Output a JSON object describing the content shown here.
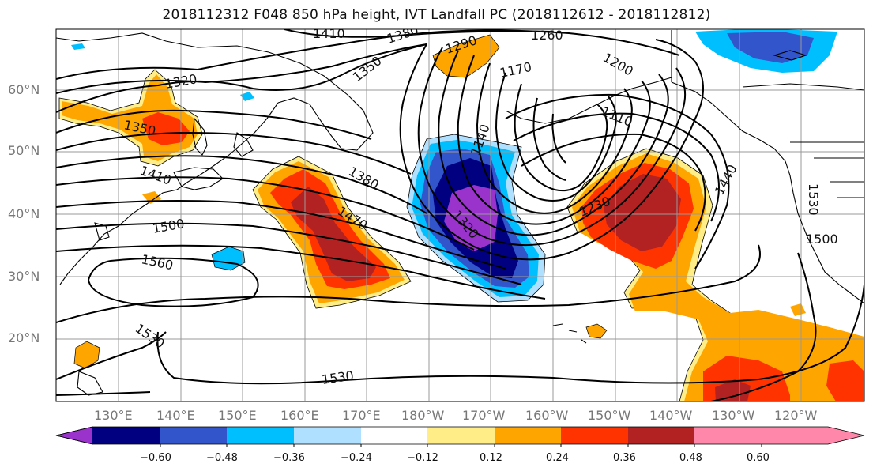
{
  "title": "2018112312 F048 850 hPa height, IVT Landfall PC (2018112612 - 2018112812)",
  "axes": {
    "lat_labels": [
      "60°N",
      "50°N",
      "40°N",
      "30°N",
      "20°N"
    ],
    "lon_labels": [
      "130°E",
      "140°E",
      "150°E",
      "160°E",
      "170°E",
      "180°W",
      "170°W",
      "160°W",
      "150°W",
      "140°W",
      "130°W",
      "120°W"
    ]
  },
  "contour_labels": [
    "1410",
    "1380",
    "1290",
    "1260",
    "1200",
    "1170",
    "1350",
    "1320",
    "1350",
    "1410",
    "1140",
    "1110",
    "1380",
    "1470",
    "1320",
    "1230",
    "1440",
    "1530",
    "1500",
    "1560",
    "1500",
    "1530",
    "1530"
  ],
  "colorbar": {
    "ticks": [
      "−0.60",
      "−0.48",
      "−0.36",
      "−0.24",
      "−0.12",
      "0.12",
      "0.24",
      "0.36",
      "0.48",
      "0.60"
    ],
    "colors": [
      "#9933cc",
      "#000080",
      "#3355cc",
      "#00bfff",
      "#b0e0ff",
      "#ffffff",
      "#ffee88",
      "#ffa500",
      "#ff3300",
      "#b22222",
      "#ff88aa"
    ]
  },
  "fill_colors": {
    "n060": "#9933cc",
    "n048": "#000080",
    "n036": "#3355cc",
    "n024": "#00bfff",
    "n012": "#b0e0ff",
    "p012": "#ffee88",
    "p024": "#ffa500",
    "p036": "#ff3300",
    "p048": "#b22222",
    "p060": "#ff88aa"
  }
}
